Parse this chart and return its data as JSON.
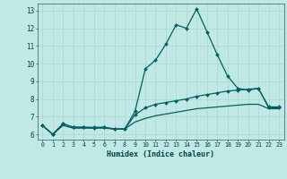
{
  "xlabel": "Humidex (Indice chaleur)",
  "background_color": "#c0e8e4",
  "grid_color": "#b0d8d4",
  "line_color": "#006060",
  "xlim": [
    -0.5,
    23.5
  ],
  "ylim": [
    5.7,
    13.4
  ],
  "xticks": [
    0,
    1,
    2,
    3,
    4,
    5,
    6,
    7,
    8,
    9,
    10,
    11,
    12,
    13,
    14,
    15,
    16,
    17,
    18,
    19,
    20,
    21,
    22,
    23
  ],
  "yticks": [
    6,
    7,
    8,
    9,
    10,
    11,
    12,
    13
  ],
  "line1_x": [
    0,
    1,
    2,
    3,
    4,
    5,
    6,
    7,
    8,
    9,
    10,
    11,
    12,
    13,
    14,
    15,
    16,
    17,
    18,
    19,
    20,
    21,
    22,
    23
  ],
  "line1_y": [
    6.5,
    6.0,
    6.6,
    6.4,
    6.4,
    6.4,
    6.4,
    6.3,
    6.3,
    7.3,
    9.7,
    10.2,
    11.1,
    12.2,
    12.0,
    13.1,
    11.8,
    10.5,
    9.3,
    8.6,
    8.5,
    8.6,
    7.5,
    7.5
  ],
  "line2_x": [
    0,
    1,
    2,
    3,
    4,
    5,
    6,
    7,
    8,
    9,
    10,
    11,
    12,
    13,
    14,
    15,
    16,
    17,
    18,
    19,
    20,
    21,
    22,
    23
  ],
  "line2_y": [
    6.5,
    6.0,
    6.6,
    6.4,
    6.4,
    6.35,
    6.4,
    6.3,
    6.3,
    7.1,
    7.5,
    7.7,
    7.8,
    7.9,
    8.0,
    8.15,
    8.25,
    8.35,
    8.45,
    8.5,
    8.55,
    8.6,
    7.55,
    7.55
  ],
  "line3_x": [
    0,
    1,
    2,
    3,
    4,
    5,
    6,
    7,
    8,
    9,
    10,
    11,
    12,
    13,
    14,
    15,
    16,
    17,
    18,
    19,
    20,
    21,
    22,
    23
  ],
  "line3_y": [
    6.5,
    6.0,
    6.5,
    6.35,
    6.35,
    6.35,
    6.35,
    6.3,
    6.3,
    6.7,
    6.9,
    7.05,
    7.15,
    7.25,
    7.35,
    7.45,
    7.5,
    7.55,
    7.6,
    7.65,
    7.7,
    7.7,
    7.45,
    7.45
  ]
}
